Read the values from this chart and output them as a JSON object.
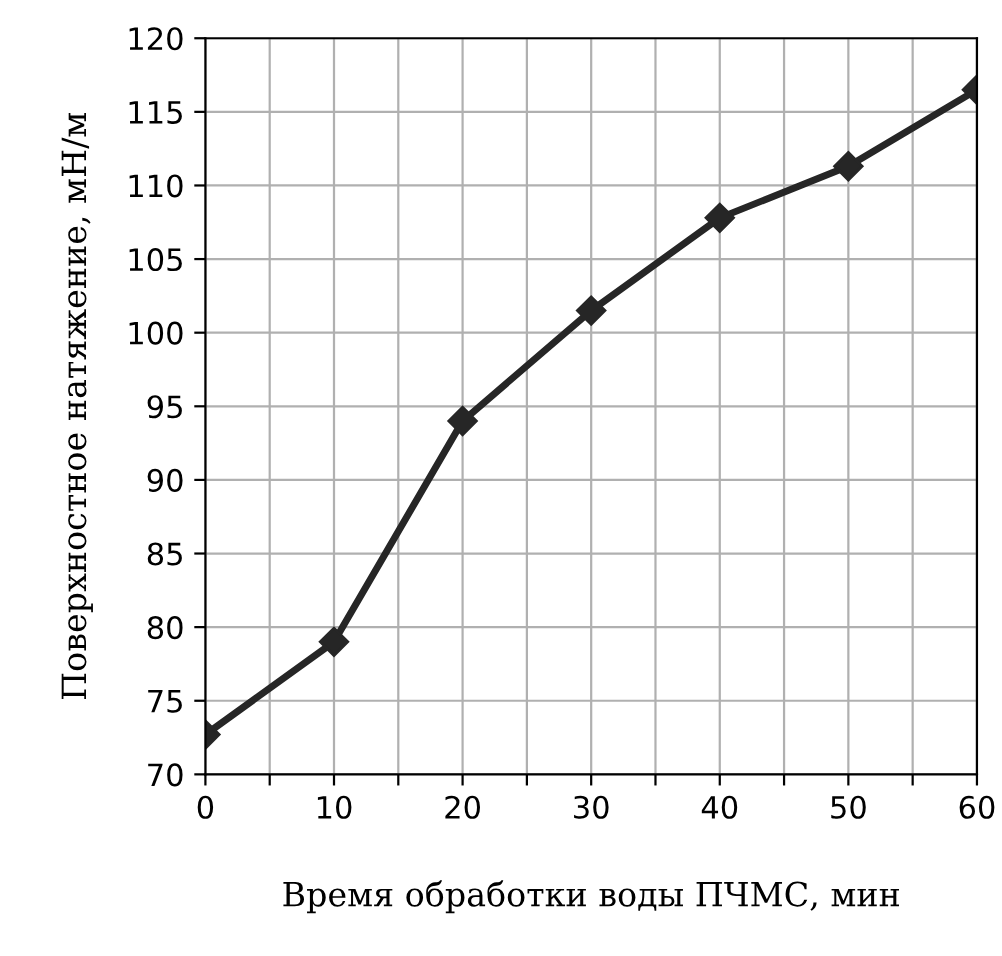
{
  "chart_data": {
    "type": "line",
    "xlabel": "Время обработки воды ПЧМС, мин",
    "ylabel": "Поверхностное натяжение, мН/м",
    "x": [
      0,
      10,
      20,
      30,
      40,
      50,
      60
    ],
    "series": [
      {
        "color": "#262626",
        "values": [
          72.7,
          79,
          94,
          101.5,
          107.8,
          111.3,
          116.5
        ]
      }
    ],
    "xlim": [
      0,
      60
    ],
    "ylim": [
      70,
      120
    ],
    "xticks": [
      0,
      {
        "value": 5,
        "label": null
      },
      10,
      {
        "value": 15,
        "label": null
      },
      20,
      {
        "value": 25,
        "label": null
      },
      30,
      {
        "value": 35,
        "label": null
      },
      40,
      {
        "value": 45,
        "label": null
      },
      50,
      {
        "value": 55,
        "label": null
      },
      60
    ],
    "yticks": [
      70,
      75,
      80,
      85,
      90,
      95,
      100,
      105,
      110,
      115,
      120
    ],
    "grid": true,
    "legend": false,
    "marker": "diamond",
    "line_style": "solid"
  }
}
